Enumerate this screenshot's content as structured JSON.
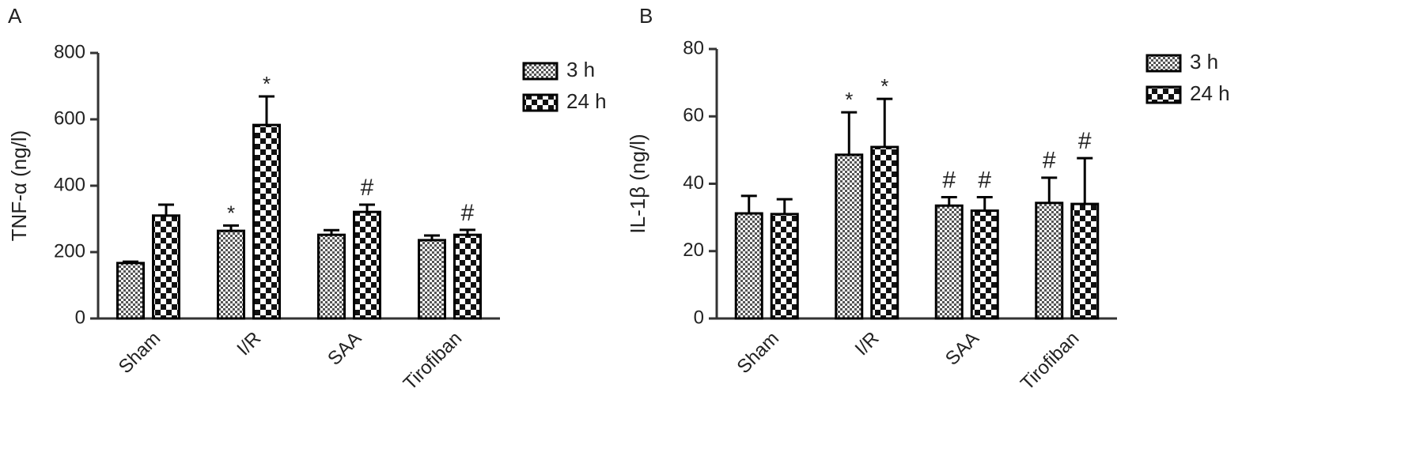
{
  "chart_data": [
    {
      "type": "bar",
      "panel_label": "A",
      "y_label": "TNF-α (ng/l)",
      "categories": [
        "Sham",
        "I/R",
        "SAA",
        "Tirofiban"
      ],
      "series": [
        {
          "name": "3 h",
          "color": "#000000",
          "pattern": "small-check",
          "values": [
            167,
            264,
            252,
            236
          ],
          "errors": [
            4,
            16,
            14,
            14
          ],
          "annotations": [
            null,
            "*",
            null,
            null
          ]
        },
        {
          "name": "24 h",
          "color": "#000000",
          "pattern": "large-check",
          "values": [
            310,
            583,
            321,
            252
          ],
          "errors": [
            33,
            86,
            22,
            15
          ],
          "annotations": [
            null,
            "*",
            "#",
            "#"
          ]
        }
      ],
      "ylim": [
        0,
        800
      ],
      "yticks": [
        0,
        200,
        400,
        600,
        800
      ],
      "legend": "top-right"
    },
    {
      "type": "bar",
      "panel_label": "B",
      "y_label": "IL-1β (ng/l)",
      "categories": [
        "Sham",
        "I/R",
        "SAA",
        "Tirofiban"
      ],
      "series": [
        {
          "name": "3 h",
          "color": "#000000",
          "pattern": "small-check",
          "values": [
            31.2,
            48.6,
            33.5,
            34.3
          ],
          "errors": [
            5.2,
            12.6,
            2.5,
            7.5
          ],
          "annotations": [
            null,
            "*",
            "#",
            "#"
          ]
        },
        {
          "name": "24 h",
          "color": "#000000",
          "pattern": "large-check",
          "values": [
            31,
            50.9,
            32,
            34
          ],
          "errors": [
            4.4,
            14.3,
            4,
            13.6
          ],
          "annotations": [
            null,
            "*",
            "#",
            "#"
          ]
        }
      ],
      "ylim": [
        0,
        80
      ],
      "yticks": [
        0,
        20,
        40,
        60,
        80
      ],
      "legend": "top-right"
    }
  ]
}
